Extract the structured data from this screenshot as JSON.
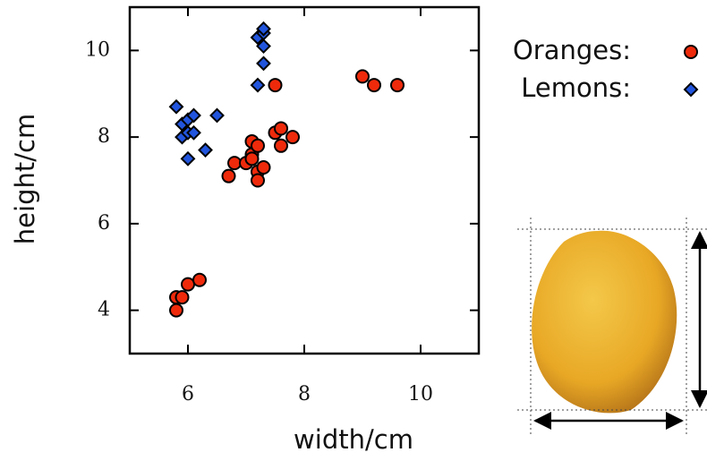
{
  "chart_data": {
    "type": "scatter",
    "xlabel": "width/cm",
    "ylabel": "height/cm",
    "xlim": [
      5,
      11
    ],
    "ylim": [
      3,
      11
    ],
    "xticks": [
      6,
      8,
      10
    ],
    "yticks": [
      4,
      6,
      8,
      10
    ],
    "series": [
      {
        "name": "Oranges:",
        "color": "#ee2a0b",
        "marker": "circle",
        "x": [
          5.8,
          5.8,
          5.9,
          6.0,
          6.2,
          6.7,
          6.8,
          7.0,
          7.1,
          7.1,
          7.1,
          7.2,
          7.2,
          7.2,
          7.3,
          7.5,
          7.6,
          7.6,
          7.8,
          7.5,
          9.0,
          9.2,
          9.6
        ],
        "values": [
          4.0,
          4.3,
          4.3,
          4.6,
          4.7,
          7.1,
          7.4,
          7.4,
          7.6,
          7.9,
          7.5,
          7.8,
          7.2,
          7.0,
          7.3,
          8.1,
          8.2,
          7.8,
          8.0,
          9.2,
          9.4,
          9.2,
          9.2
        ]
      },
      {
        "name": "Lemons:",
        "color": "#2255dd",
        "marker": "diamond",
        "x": [
          5.8,
          5.9,
          5.9,
          6.0,
          6.1,
          6.0,
          6.1,
          6.0,
          6.3,
          6.5,
          7.2,
          7.3,
          7.3,
          7.3,
          7.3,
          7.2
        ],
        "values": [
          8.7,
          8.0,
          8.3,
          8.4,
          8.5,
          8.1,
          8.1,
          7.5,
          7.7,
          8.5,
          10.3,
          10.4,
          10.5,
          10.1,
          9.7,
          9.2
        ]
      }
    ]
  }
}
